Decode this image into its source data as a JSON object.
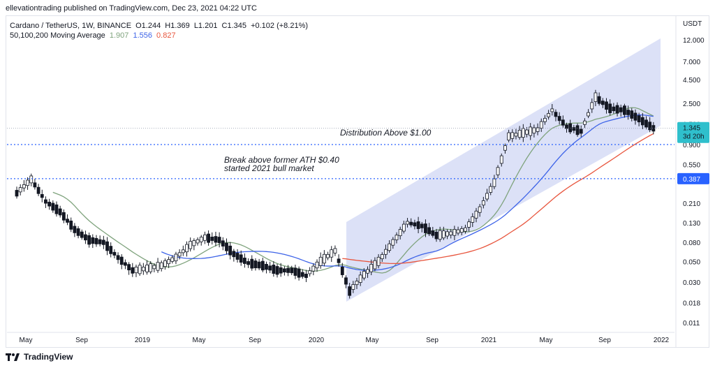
{
  "header": {
    "publisher_line": "ellevationtrading published on TradingView.com, Dec 23, 2021 04:22 UTC"
  },
  "legend": {
    "symbol_line": "Cardano / TetherUS, 1W, BINANCE",
    "ohlc": {
      "o": "O1.244",
      "h": "H1.369",
      "l": "L1.201",
      "c": "C1.345",
      "chg": "+0.102 (+8.21%)"
    },
    "ma_title": "50,100,200 Moving Average",
    "ma_values": [
      "1.907",
      "1.556",
      "0.827"
    ]
  },
  "colors": {
    "up": "#131722",
    "ma50": "#7fa37d",
    "ma100": "#3d63e8",
    "ma200": "#e8553d",
    "channel": "#d3daf5",
    "level": "#2962ff",
    "axis_text": "#131722"
  },
  "chart_data": {
    "type": "candlestick",
    "y_scale": "log",
    "currency_label": "USDT",
    "y_ticks": [
      "12.000",
      "7.000",
      "4.500",
      "2.500",
      "1.500",
      "0.900",
      "0.550",
      "0.387",
      "0.210",
      "0.130",
      "0.080",
      "0.050",
      "0.030",
      "0.018",
      "0.011"
    ],
    "x_ticks": [
      "May",
      "Sep",
      "2019",
      "May",
      "Sep",
      "2020",
      "May",
      "Sep",
      "2021",
      "May",
      "Sep",
      "2022"
    ],
    "last_price": {
      "value": "1.345",
      "countdown": "3d 20h"
    },
    "level_label": "0.387",
    "levels": [
      0.387,
      0.9
    ],
    "annotations": [
      {
        "text": "Distribution Above $1.00"
      },
      {
        "text": "Break above former ATH $0.40"
      },
      {
        "text": "started 2021 bull market"
      }
    ],
    "price_path": [
      [
        "2018-04",
        0.27
      ],
      [
        "2018-05",
        0.38
      ],
      [
        "2018-06",
        0.22
      ],
      [
        "2018-07",
        0.17
      ],
      [
        "2018-08",
        0.11
      ],
      [
        "2018-09",
        0.085
      ],
      [
        "2018-10",
        0.08
      ],
      [
        "2018-11",
        0.055
      ],
      [
        "2018-12",
        0.04
      ],
      [
        "2019-01",
        0.042
      ],
      [
        "2019-02",
        0.045
      ],
      [
        "2019-03",
        0.055
      ],
      [
        "2019-04",
        0.075
      ],
      [
        "2019-05",
        0.09
      ],
      [
        "2019-06",
        0.085
      ],
      [
        "2019-07",
        0.06
      ],
      [
        "2019-08",
        0.048
      ],
      [
        "2019-09",
        0.045
      ],
      [
        "2019-10",
        0.04
      ],
      [
        "2019-11",
        0.04
      ],
      [
        "2019-12",
        0.035
      ],
      [
        "2020-01",
        0.05
      ],
      [
        "2020-02",
        0.065
      ],
      [
        "2020-03",
        0.024
      ],
      [
        "2020-04",
        0.036
      ],
      [
        "2020-05",
        0.05
      ],
      [
        "2020-06",
        0.08
      ],
      [
        "2020-07",
        0.13
      ],
      [
        "2020-08",
        0.12
      ],
      [
        "2020-09",
        0.095
      ],
      [
        "2020-10",
        0.1
      ],
      [
        "2020-11",
        0.11
      ],
      [
        "2020-12",
        0.18
      ],
      [
        "2021-01",
        0.35
      ],
      [
        "2021-02",
        1.1
      ],
      [
        "2021-03",
        1.2
      ],
      [
        "2021-04",
        1.3
      ],
      [
        "2021-05",
        2.1
      ],
      [
        "2021-06",
        1.4
      ],
      [
        "2021-07",
        1.25
      ],
      [
        "2021-08",
        2.9
      ],
      [
        "2021-09",
        2.2
      ],
      [
        "2021-10",
        2.1
      ],
      [
        "2021-11",
        1.7
      ],
      [
        "2021-12",
        1.345
      ]
    ]
  },
  "footer": {
    "brand": "TradingView"
  }
}
